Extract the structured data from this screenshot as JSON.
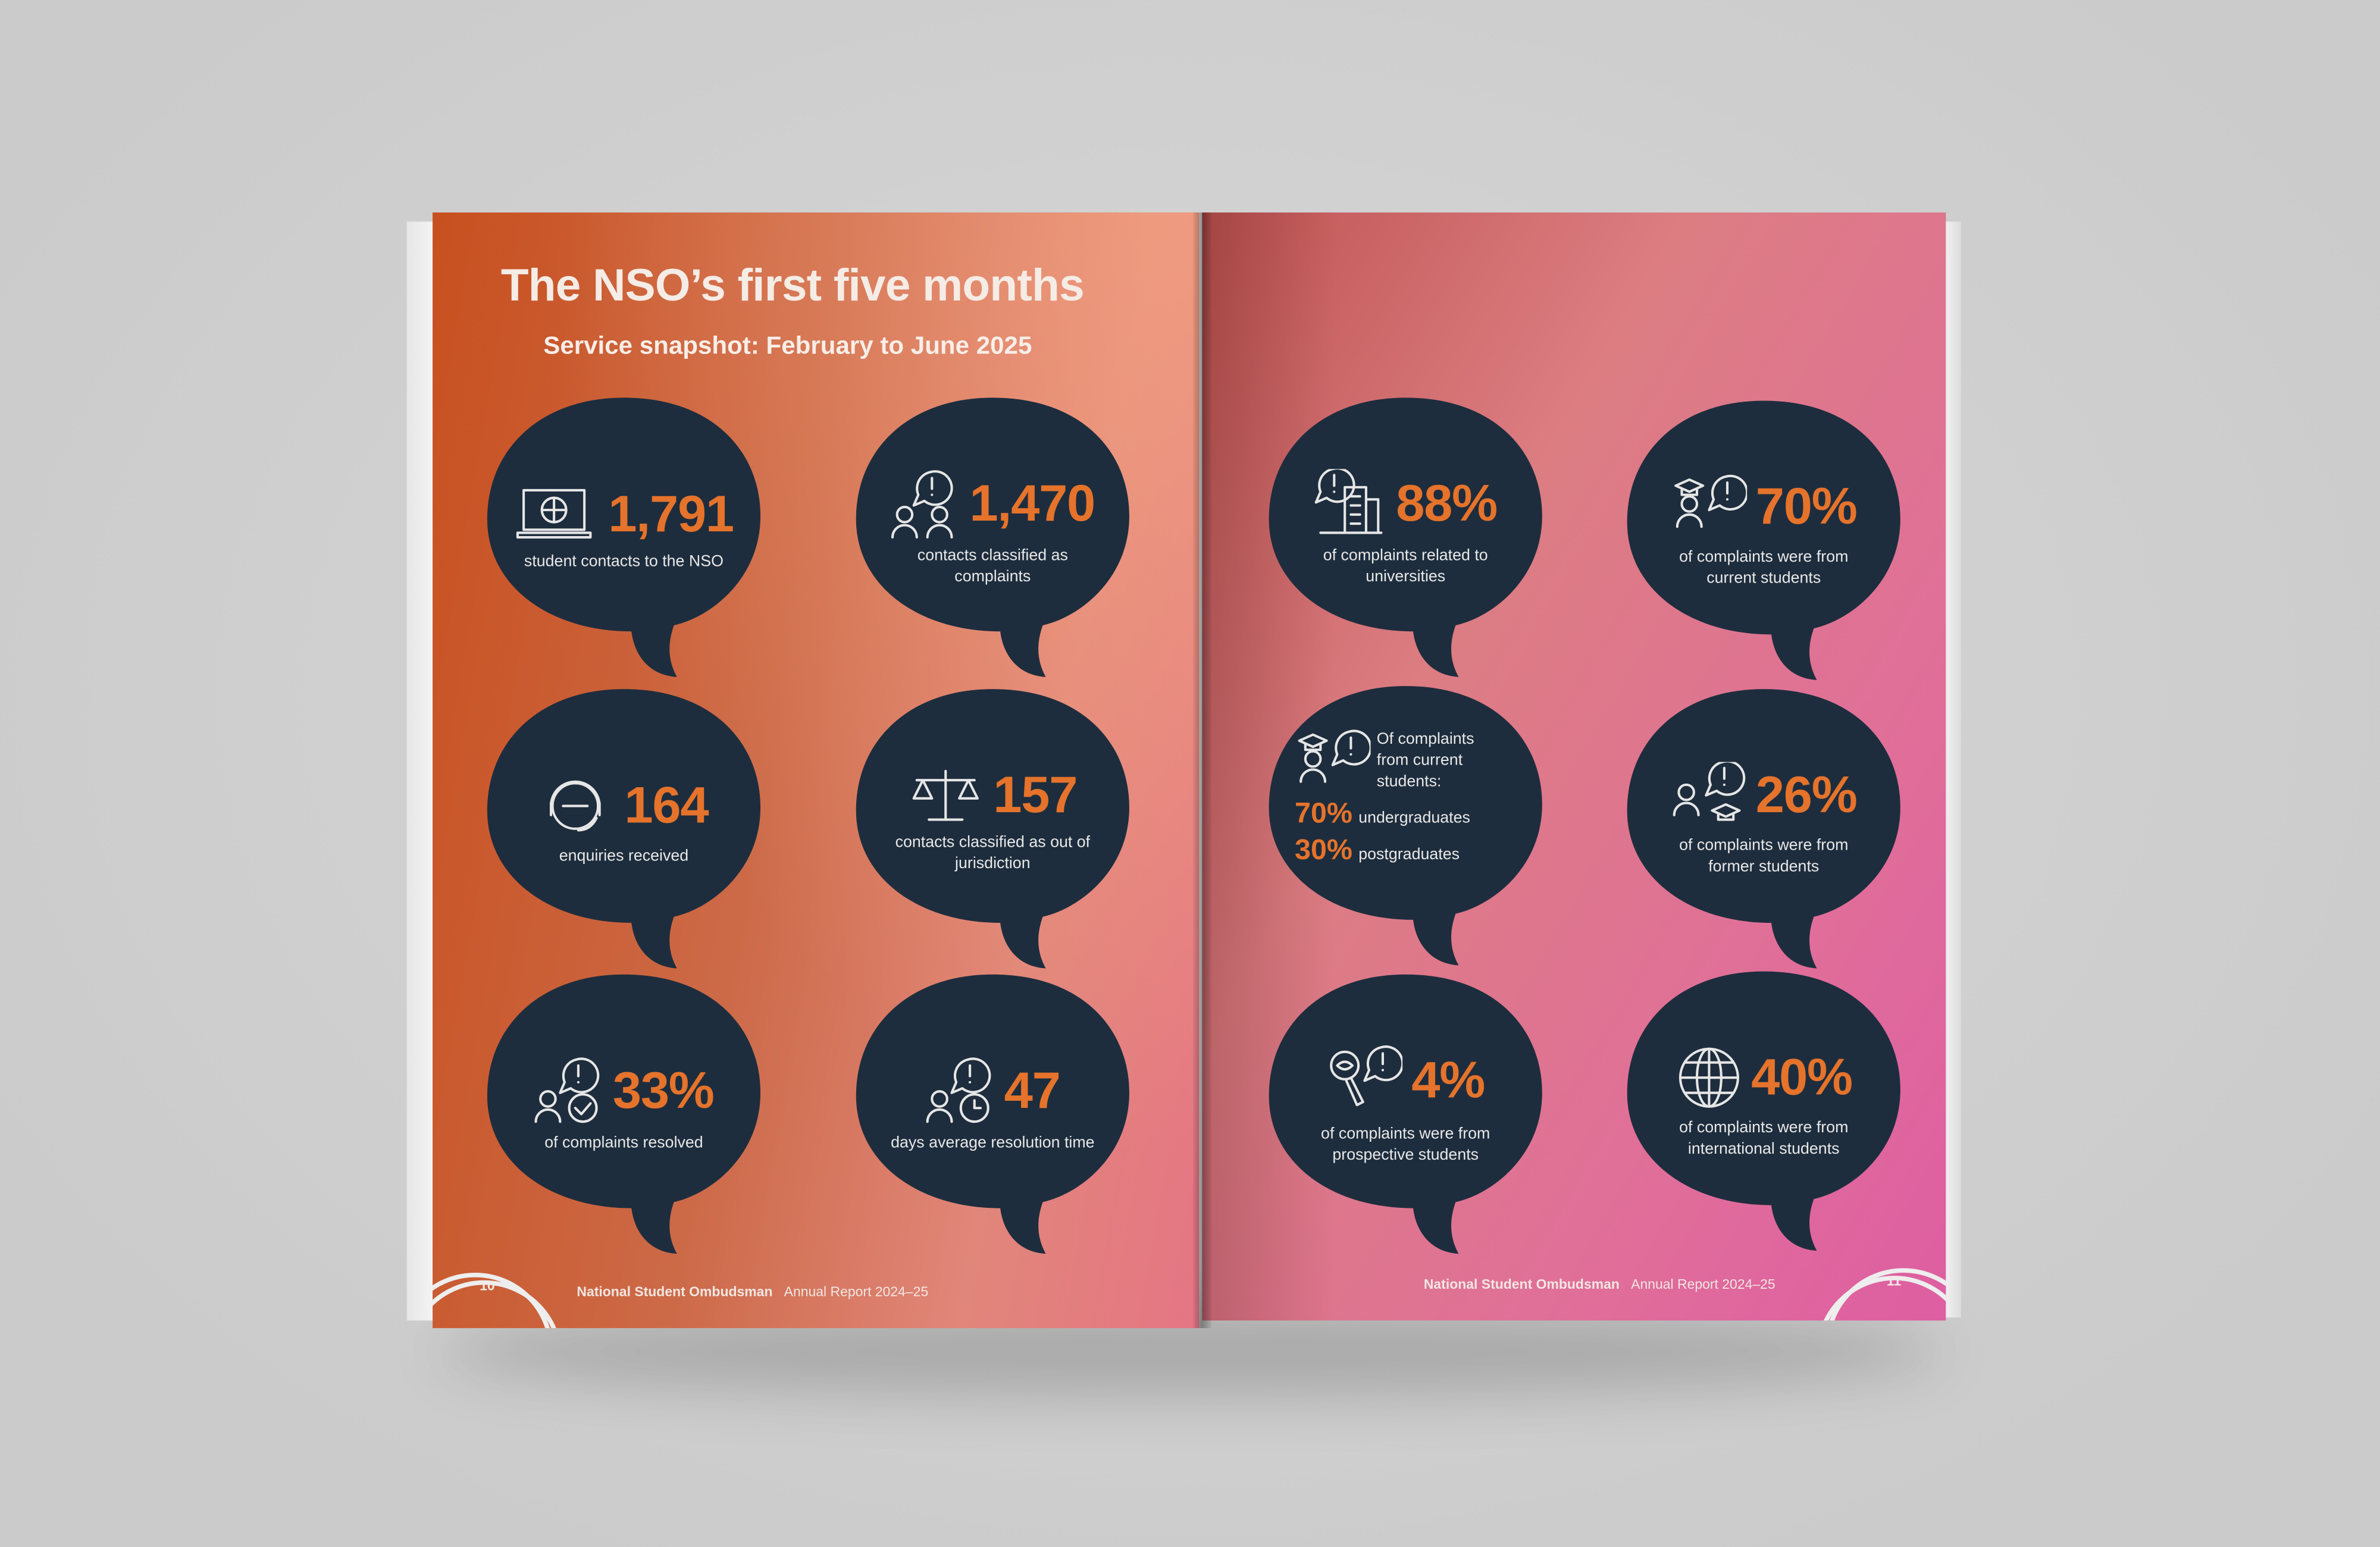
{
  "header": {
    "title": "The NSO’s first five months",
    "subtitle": "Service snapshot: February to June 2025"
  },
  "colors": {
    "bubble": "#1e2d3d",
    "accent": "#e5732b"
  },
  "stats": [
    {
      "value": "1,791",
      "label": "student contacts to the NSO",
      "icon": "laptop-globe-icon"
    },
    {
      "value": "1,470",
      "label": "contacts classified as complaints",
      "icon": "people-alert-icon"
    },
    {
      "value": "164",
      "label": "enquiries received",
      "icon": "headset-icon"
    },
    {
      "value": "157",
      "label": "contacts classified as out of jurisdiction",
      "icon": "scales-icon"
    },
    {
      "value": "33%",
      "label": "of complaints resolved",
      "icon": "person-check-icon"
    },
    {
      "value": "47",
      "label": "days average resolution time",
      "icon": "person-clock-icon"
    },
    {
      "value": "88%",
      "label": "of complaints related to universities",
      "icon": "university-alert-icon"
    },
    {
      "value": "70%",
      "label": "of complaints were from current students",
      "icon": "graduate-alert-icon"
    },
    {
      "value": "26%",
      "label": "of complaints were from former students",
      "icon": "former-student-icon"
    },
    {
      "value": "4%",
      "label": "of complaints were from prospective students",
      "icon": "search-alert-icon"
    },
    {
      "value": "40%",
      "label": "of complaints were from international students",
      "icon": "globe-icon"
    }
  ],
  "breakdown": {
    "heading": "Of complaints from current students:",
    "items": [
      {
        "value": "70%",
        "label": "undergraduates"
      },
      {
        "value": "30%",
        "label": "postgraduates"
      }
    ]
  },
  "footer": {
    "org": "National Student Ombudsman",
    "report": "Annual Report 2024–25",
    "left_page": "10",
    "right_page": "11"
  }
}
